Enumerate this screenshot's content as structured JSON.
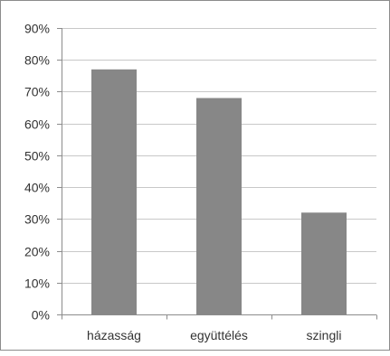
{
  "chart_data": {
    "type": "bar",
    "title": "",
    "xlabel": "",
    "ylabel": "",
    "categories": [
      "házasság",
      "együttélés",
      "szingli"
    ],
    "values": [
      77,
      68,
      32
    ],
    "unit": "%",
    "ylim": [
      0,
      90
    ],
    "yticks": [
      0,
      10,
      20,
      30,
      40,
      50,
      60,
      70,
      80,
      90
    ],
    "ytick_labels": [
      "0%",
      "10%",
      "20%",
      "30%",
      "40%",
      "50%",
      "60%",
      "70%",
      "80%",
      "90%"
    ],
    "grid": true,
    "legend": "none",
    "colors": {
      "bar": "#878787",
      "grid": "#c8c8c8",
      "axis": "#8c8c8c",
      "text": "#333333"
    }
  }
}
